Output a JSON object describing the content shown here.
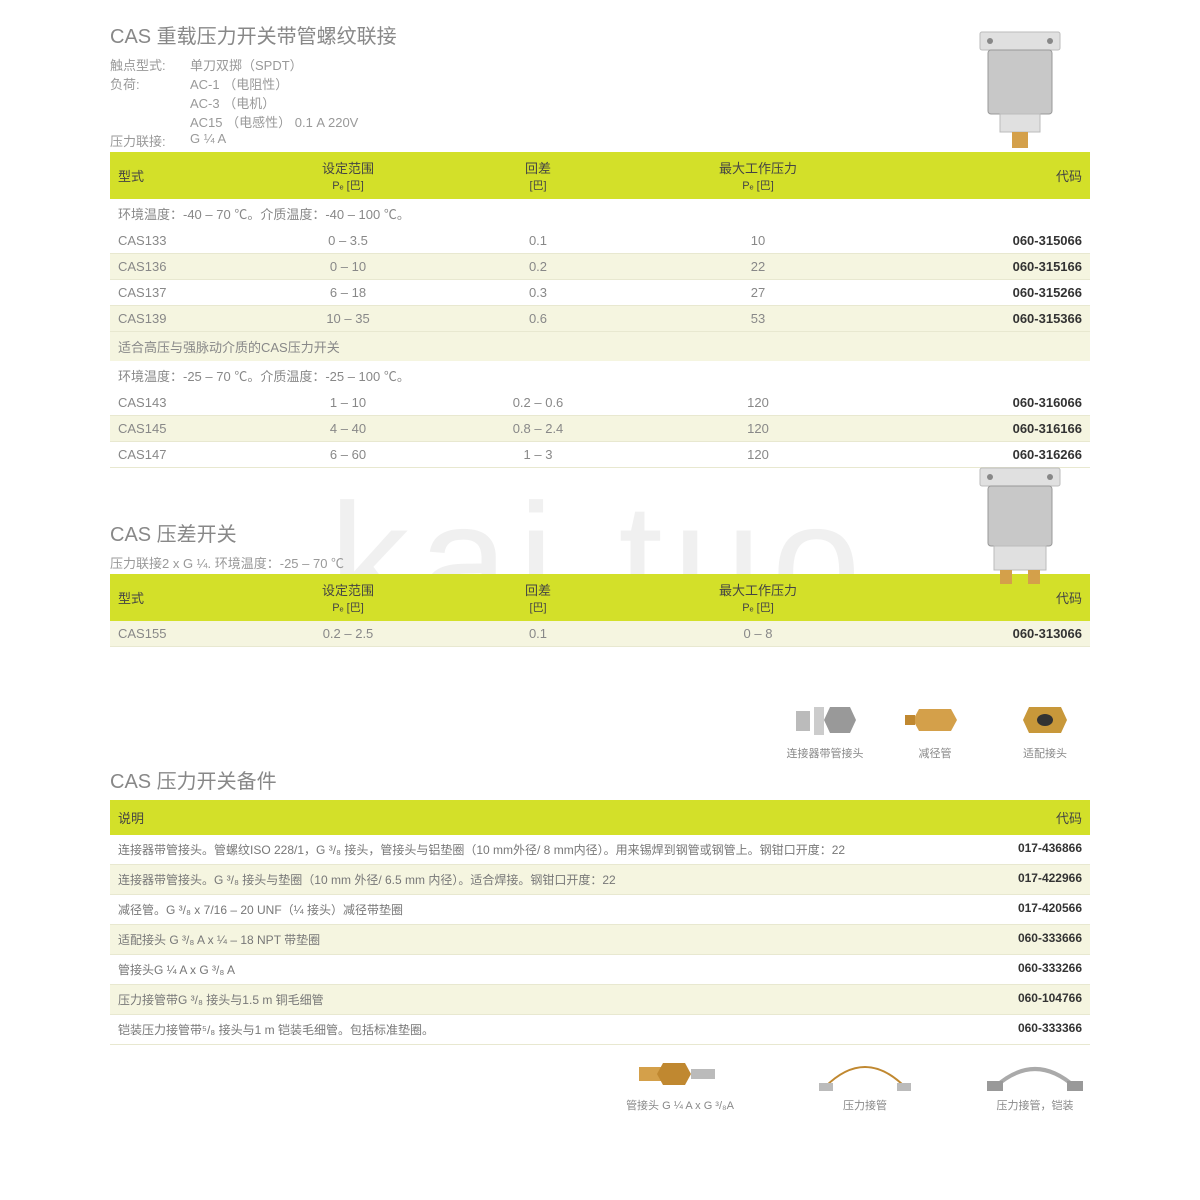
{
  "watermark": "kai tuo",
  "section1": {
    "title": "CAS 重载压力开关带管螺纹联接",
    "meta": [
      {
        "label": "触点型式:",
        "value": "单刀双掷（SPDT）"
      },
      {
        "label": "负荷:",
        "value": "AC-1 （电阻性）"
      },
      {
        "label": "",
        "value": "AC-3 （电机）"
      },
      {
        "label": "",
        "value": "AC15 （电感性） 0.1 A 220V"
      },
      {
        "label": "压力联接:",
        "value": "G ¼ A"
      }
    ],
    "headers": {
      "c1": "型式",
      "c2": "设定范围",
      "c2sub": "Pₑ [巴]",
      "c3": "回差",
      "c3sub": "[巴]",
      "c4": "最大工作压力",
      "c4sub": "Pₑ [巴]",
      "c5": "代码"
    },
    "span1": "环境温度：-40 – 70 ℃。介质温度：-40 – 100 ℃。",
    "rows1": [
      {
        "c1": "CAS133",
        "c2": "0 – 3.5",
        "c3": "0.1",
        "c4": "10",
        "c5": "060-315066"
      },
      {
        "c1": "CAS136",
        "c2": "0 – 10",
        "c3": "0.2",
        "c4": "22",
        "c5": "060-315166"
      },
      {
        "c1": "CAS137",
        "c2": "6 – 18",
        "c3": "0.3",
        "c4": "27",
        "c5": "060-315266"
      },
      {
        "c1": "CAS139",
        "c2": "10 – 35",
        "c3": "0.6",
        "c4": "53",
        "c5": "060-315366"
      }
    ],
    "span2": "适合高压与强脉动介质的CAS压力开关",
    "span3": "环境温度：-25 – 70 ℃。介质温度：-25 – 100 ℃。",
    "rows2": [
      {
        "c1": "CAS143",
        "c2": "1 – 10",
        "c3": "0.2 – 0.6",
        "c4": "120",
        "c5": "060-316066"
      },
      {
        "c1": "CAS145",
        "c2": "4 – 40",
        "c3": "0.8 – 2.4",
        "c4": "120",
        "c5": "060-316166"
      },
      {
        "c1": "CAS147",
        "c2": "6 – 60",
        "c3": "1 – 3",
        "c4": "120",
        "c5": "060-316266"
      }
    ]
  },
  "section2": {
    "title": "CAS 压差开关",
    "meta": "压力联接2 x G ¼. 环境温度：-25 – 70 ℃",
    "rows": [
      {
        "c1": "CAS155",
        "c2": "0.2 – 2.5",
        "c3": "0.1",
        "c4": "0 – 8",
        "c5": "060-313066"
      }
    ]
  },
  "section3": {
    "title": "CAS 压力开关备件",
    "thumbs_top": [
      "连接器带管接头",
      "减径管",
      "适配接头"
    ],
    "headers": {
      "desc": "说明",
      "code": "代码"
    },
    "rows": [
      {
        "desc": "连接器带管接头。管螺纹ISO 228/1，G ³/₈ 接头，管接头与铝垫圈（10 mm外径/ 8 mm内径）。用来锡焊到钢管或钢管上。钢钳口开度：22",
        "code": "017-436866"
      },
      {
        "desc": "连接器带管接头。G ³/₈ 接头与垫圈（10 mm 外径/ 6.5 mm 内径）。适合焊接。钢钳口开度：22",
        "code": "017-422966"
      },
      {
        "desc": "减径管。G ³/₈ x 7/16 – 20 UNF（¼ 接头）减径带垫圈",
        "code": "017-420566"
      },
      {
        "desc": "适配接头 G ³/₈ A x ¼ – 18 NPT 带垫圈",
        "code": "060-333666"
      },
      {
        "desc": "管接头G ¼ A x G ³/₈ A",
        "code": "060-333266"
      },
      {
        "desc": "压力接管带G ³/₈ 接头与1.5 m 铜毛细管",
        "code": "060-104766"
      },
      {
        "desc": "铠装压力接管带⁵/₈ 接头与1 m 铠装毛细管。包括标准垫圈。",
        "code": "060-333366"
      }
    ],
    "thumbs_bottom": [
      "管接头 G ¼ A x G ³/₈A",
      "压力接管",
      "压力接管，铠装"
    ]
  },
  "colors": {
    "header_bg": "#d3e029",
    "alt_bg": "#f5f5e0",
    "border": "#e8e8d0",
    "brass": "#d4a04a"
  }
}
